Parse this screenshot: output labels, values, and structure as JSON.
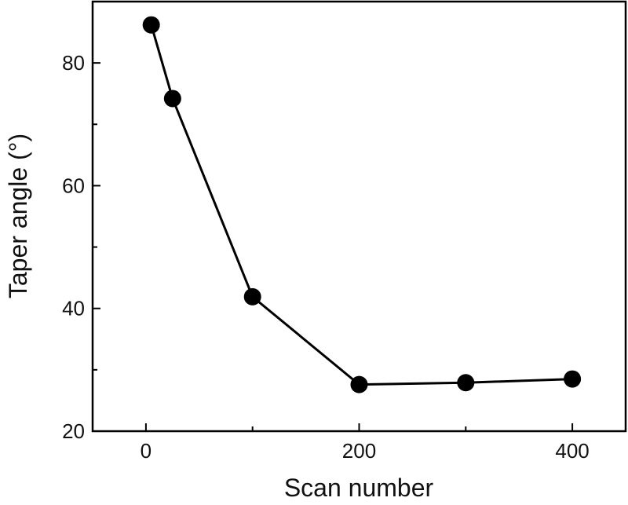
{
  "chart_data": {
    "type": "line",
    "x_label": "Scan number",
    "y_label": "Taper angle (°)",
    "x": [
      5,
      25,
      100,
      200,
      300,
      400
    ],
    "series": [
      {
        "color": "#000000",
        "values": [
          86.2,
          74.2,
          41.9,
          27.6,
          27.9,
          28.5
        ]
      }
    ],
    "xlim": [
      -50,
      450
    ],
    "xticks": [
      0,
      200,
      400
    ],
    "xminorticks": [
      100,
      300
    ],
    "ylim": [
      20,
      90
    ],
    "yticks": [
      20,
      40,
      60,
      80
    ],
    "yminorticks": [
      30,
      50,
      70
    ],
    "grid": false,
    "markers": true
  }
}
